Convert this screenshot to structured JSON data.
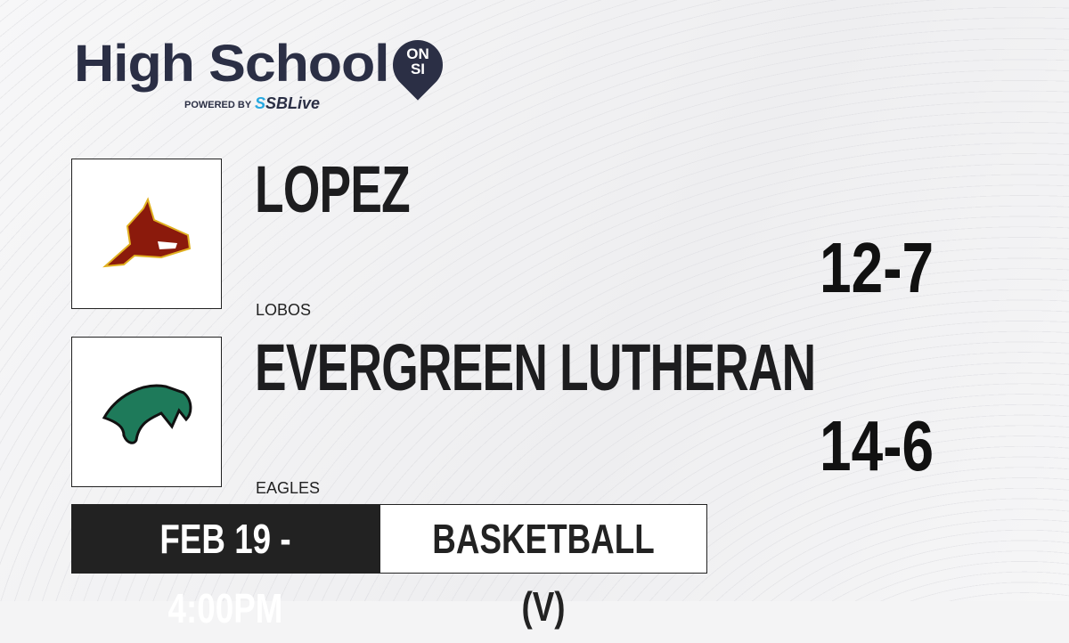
{
  "brand": {
    "title": "High School",
    "badge_top": "ON",
    "badge_bottom": "SI",
    "powered_by": "POWERED BY",
    "partner": "SBLive"
  },
  "teams": [
    {
      "name": "LOPEZ",
      "mascot": "LOBOS",
      "record": "12-7",
      "logo": "wolf-logo-icon",
      "color": "#8b1a0c"
    },
    {
      "name": "EVERGREEN LUTHERAN",
      "mascot": "EAGLES",
      "record": "14-6",
      "logo": "eagle-logo-icon",
      "color": "#1e7a5a"
    }
  ],
  "game": {
    "datetime": "FEB 19 - 4:00PM",
    "sport": "BASKETBALL (V)"
  }
}
